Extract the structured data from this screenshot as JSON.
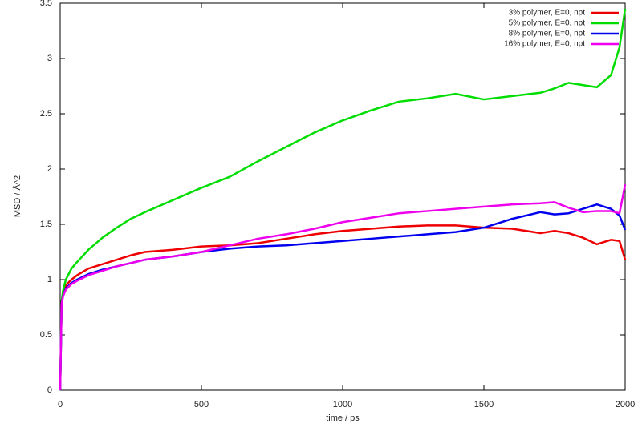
{
  "chart_data": {
    "type": "line",
    "xlabel": "time / ps",
    "ylabel": "MSD / Å^2",
    "x": [
      0,
      5,
      10,
      20,
      40,
      60,
      100,
      150,
      200,
      250,
      300,
      400,
      500,
      600,
      700,
      800,
      900,
      1000,
      1100,
      1200,
      1300,
      1400,
      1500,
      1600,
      1700,
      1750,
      1800,
      1850,
      1900,
      1950,
      1980,
      2000
    ],
    "series": [
      {
        "name": "3% polymer, E=0, npt",
        "color": "#ee0000",
        "values": [
          0,
          0.8,
          0.87,
          0.95,
          1.0,
          1.04,
          1.1,
          1.14,
          1.18,
          1.22,
          1.25,
          1.27,
          1.3,
          1.31,
          1.33,
          1.37,
          1.41,
          1.44,
          1.46,
          1.48,
          1.49,
          1.49,
          1.47,
          1.46,
          1.42,
          1.44,
          1.42,
          1.38,
          1.32,
          1.36,
          1.35,
          1.18
        ]
      },
      {
        "name": "5% polymer, E=0, npt",
        "color": "#00dd00",
        "values": [
          0,
          0.8,
          0.9,
          1.0,
          1.1,
          1.16,
          1.27,
          1.38,
          1.47,
          1.55,
          1.61,
          1.72,
          1.83,
          1.93,
          2.07,
          2.2,
          2.33,
          2.44,
          2.53,
          2.61,
          2.64,
          2.68,
          2.63,
          2.66,
          2.69,
          2.73,
          2.78,
          2.76,
          2.74,
          2.85,
          3.1,
          3.45
        ]
      },
      {
        "name": "8% polymer, E=0, npt",
        "color": "#0000ee",
        "values": [
          0,
          0.78,
          0.85,
          0.92,
          0.97,
          1.0,
          1.05,
          1.09,
          1.12,
          1.15,
          1.18,
          1.21,
          1.25,
          1.28,
          1.3,
          1.31,
          1.33,
          1.35,
          1.37,
          1.39,
          1.41,
          1.43,
          1.47,
          1.55,
          1.61,
          1.59,
          1.6,
          1.64,
          1.68,
          1.64,
          1.58,
          1.45
        ]
      },
      {
        "name": "16% polymer, E=0, npt",
        "color": "#ee00ee",
        "values": [
          0,
          0.78,
          0.85,
          0.91,
          0.96,
          0.99,
          1.04,
          1.08,
          1.12,
          1.15,
          1.18,
          1.21,
          1.25,
          1.31,
          1.37,
          1.41,
          1.46,
          1.52,
          1.56,
          1.6,
          1.62,
          1.64,
          1.66,
          1.68,
          1.69,
          1.7,
          1.65,
          1.61,
          1.62,
          1.62,
          1.6,
          1.86
        ]
      }
    ],
    "xlim": [
      0,
      2000
    ],
    "xticks": [
      0,
      500,
      1000,
      1500,
      2000
    ],
    "ylim": [
      0,
      3.5
    ],
    "yticks": [
      0,
      0.5,
      1,
      1.5,
      2,
      2.5,
      3,
      3.5
    ],
    "legend": "upper right"
  }
}
